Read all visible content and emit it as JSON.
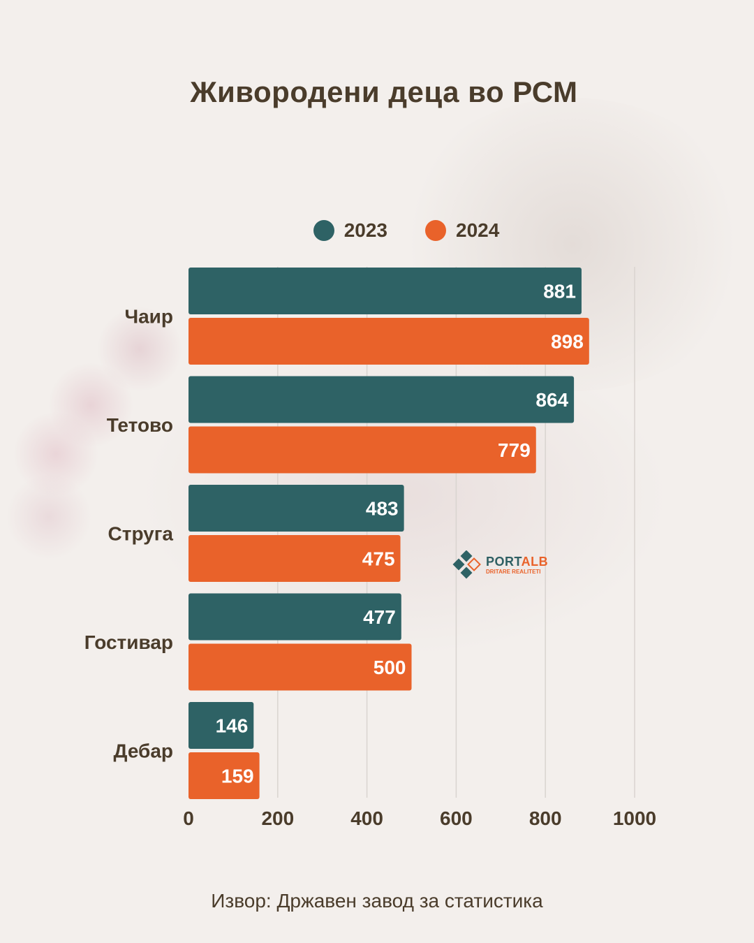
{
  "title": "Живородени деца во РСМ",
  "source": "Извор: Државен завод за статистика",
  "logo": {
    "name_part1": "PORT",
    "name_part2": "ALB",
    "tagline": "DRITARE REALITETI"
  },
  "colors": {
    "series_2023": "#2e6265",
    "series_2024": "#e9622a",
    "text": "#4a3c2b"
  },
  "chart_data": {
    "type": "bar",
    "orientation": "horizontal",
    "categories": [
      "Чаир",
      "Тетово",
      "Струга",
      "Гостивар",
      "Дебар"
    ],
    "series": [
      {
        "name": "2023",
        "values": [
          881,
          864,
          483,
          477,
          146
        ]
      },
      {
        "name": "2024",
        "values": [
          898,
          779,
          475,
          500,
          159
        ]
      }
    ],
    "xlim": [
      0,
      1000
    ],
    "xticks": [
      0,
      200,
      400,
      600,
      800,
      1000
    ],
    "grid": "vertical",
    "legend": "top",
    "data_labels": true
  }
}
